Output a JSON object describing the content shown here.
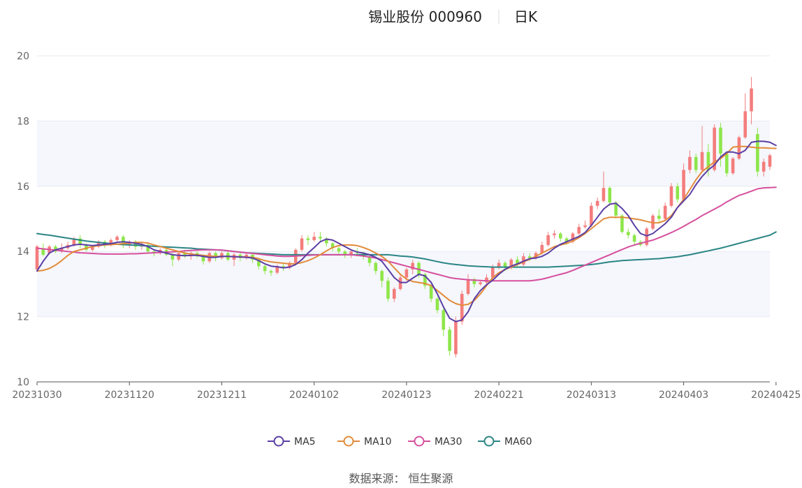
{
  "header": {
    "title": "锡业股份 000960",
    "period": "日K"
  },
  "source": "数据来源： 恒生聚源",
  "colors": {
    "up": "#f47d7d",
    "down": "#8ee64a",
    "grid": "#e6eaf2",
    "band": "#f5f7fc",
    "axis": "#555555"
  },
  "chart_data": {
    "type": "candlestick",
    "y_ticks": [
      "10",
      "12",
      "14",
      "16",
      "18",
      "20"
    ],
    "ylim": [
      10,
      20
    ],
    "x_ticks": [
      "20231030",
      "20231120",
      "20231211",
      "20240102",
      "20240123",
      "20240221",
      "20240313",
      "20240403",
      "20240425"
    ],
    "x_tick_index": [
      0,
      15,
      30,
      45,
      60,
      75,
      90,
      105,
      120
    ],
    "legend": [
      {
        "name": "MA5",
        "color": "#5b3ea4"
      },
      {
        "name": "MA10",
        "color": "#e28b3a"
      },
      {
        "name": "MA30",
        "color": "#d64f9e"
      },
      {
        "name": "MA60",
        "color": "#2a8585"
      }
    ],
    "candles": [
      [
        13.45,
        14.15,
        14.2,
        13.4
      ],
      [
        14.1,
        13.9,
        14.25,
        13.85
      ],
      [
        13.95,
        14.15,
        14.2,
        13.9
      ],
      [
        14.15,
        14.0,
        14.2,
        13.95
      ],
      [
        14.0,
        14.1,
        14.25,
        13.95
      ],
      [
        14.1,
        14.2,
        14.3,
        14.05
      ],
      [
        14.2,
        14.4,
        14.45,
        14.15
      ],
      [
        14.4,
        14.2,
        14.5,
        14.1
      ],
      [
        14.2,
        14.05,
        14.25,
        14.0
      ],
      [
        14.05,
        14.15,
        14.2,
        14.0
      ],
      [
        14.15,
        14.3,
        14.35,
        14.1
      ],
      [
        14.3,
        14.2,
        14.35,
        14.1
      ],
      [
        14.2,
        14.35,
        14.4,
        14.15
      ],
      [
        14.35,
        14.45,
        14.5,
        14.3
      ],
      [
        14.45,
        14.2,
        14.5,
        14.1
      ],
      [
        14.2,
        14.3,
        14.35,
        14.1
      ],
      [
        14.3,
        14.15,
        14.35,
        14.05
      ],
      [
        14.15,
        14.2,
        14.25,
        14.05
      ],
      [
        14.2,
        14.0,
        14.25,
        13.95
      ],
      [
        14.0,
        13.95,
        14.05,
        13.85
      ],
      [
        13.95,
        14.05,
        14.1,
        13.9
      ],
      [
        14.05,
        13.9,
        14.1,
        13.85
      ],
      [
        13.9,
        13.75,
        13.95,
        13.55
      ],
      [
        13.75,
        13.95,
        14.0,
        13.7
      ],
      [
        13.95,
        13.85,
        14.05,
        13.8
      ],
      [
        13.85,
        13.95,
        14.0,
        13.75
      ],
      [
        13.95,
        13.85,
        14.0,
        13.8
      ],
      [
        13.85,
        13.7,
        13.9,
        13.6
      ],
      [
        13.7,
        13.95,
        14.0,
        13.65
      ],
      [
        13.95,
        13.8,
        14.0,
        13.7
      ],
      [
        13.8,
        13.95,
        14.0,
        13.75
      ],
      [
        13.95,
        13.75,
        14.0,
        13.7
      ],
      [
        13.75,
        13.9,
        13.95,
        13.55
      ],
      [
        13.9,
        13.8,
        13.95,
        13.7
      ],
      [
        13.8,
        13.9,
        13.95,
        13.75
      ],
      [
        13.9,
        13.75,
        13.95,
        13.65
      ],
      [
        13.75,
        13.55,
        13.8,
        13.45
      ],
      [
        13.55,
        13.4,
        13.6,
        13.3
      ],
      [
        13.4,
        13.35,
        13.45,
        13.25
      ],
      [
        13.35,
        13.55,
        13.6,
        13.3
      ],
      [
        13.55,
        13.5,
        13.65,
        13.4
      ],
      [
        13.5,
        13.65,
        13.7,
        13.45
      ],
      [
        13.65,
        14.05,
        14.1,
        13.6
      ],
      [
        14.05,
        14.4,
        14.5,
        14.0
      ],
      [
        14.4,
        14.35,
        14.5,
        14.2
      ],
      [
        14.35,
        14.45,
        14.6,
        14.3
      ],
      [
        14.45,
        14.4,
        14.6,
        14.3
      ],
      [
        14.4,
        14.25,
        14.45,
        14.15
      ],
      [
        14.25,
        14.1,
        14.3,
        14.0
      ],
      [
        14.1,
        14.0,
        14.15,
        13.9
      ],
      [
        14.0,
        13.9,
        14.05,
        13.8
      ],
      [
        13.9,
        14.0,
        14.05,
        13.8
      ],
      [
        14.0,
        13.95,
        14.1,
        13.85
      ],
      [
        13.95,
        13.85,
        14.0,
        13.75
      ],
      [
        13.85,
        13.65,
        13.9,
        13.55
      ],
      [
        13.65,
        13.4,
        13.7,
        13.3
      ],
      [
        13.4,
        13.1,
        13.45,
        12.9
      ],
      [
        13.1,
        12.55,
        13.2,
        12.45
      ],
      [
        12.55,
        12.85,
        12.9,
        12.45
      ],
      [
        12.85,
        13.2,
        13.3,
        12.8
      ],
      [
        13.2,
        13.45,
        13.5,
        13.1
      ],
      [
        13.45,
        13.65,
        13.75,
        13.3
      ],
      [
        13.65,
        13.3,
        13.7,
        13.2
      ],
      [
        13.3,
        12.95,
        13.35,
        12.85
      ],
      [
        12.95,
        12.55,
        13.0,
        12.45
      ],
      [
        12.55,
        12.2,
        12.6,
        12.1
      ],
      [
        12.2,
        11.6,
        12.25,
        11.4
      ],
      [
        11.6,
        10.95,
        11.7,
        10.8
      ],
      [
        10.85,
        11.85,
        12.0,
        10.75
      ],
      [
        11.85,
        12.7,
        12.8,
        11.75
      ],
      [
        12.7,
        13.15,
        13.3,
        12.65
      ],
      [
        13.15,
        13.0,
        13.2,
        12.9
      ],
      [
        13.0,
        13.05,
        13.1,
        12.95
      ],
      [
        13.05,
        13.2,
        13.3,
        13.0
      ],
      [
        13.2,
        13.5,
        13.6,
        13.15
      ],
      [
        13.5,
        13.65,
        13.75,
        13.45
      ],
      [
        13.65,
        13.5,
        13.7,
        13.4
      ],
      [
        13.5,
        13.75,
        13.8,
        13.45
      ],
      [
        13.75,
        13.6,
        13.85,
        13.5
      ],
      [
        13.6,
        13.85,
        13.95,
        13.55
      ],
      [
        13.85,
        13.8,
        13.95,
        13.7
      ],
      [
        13.8,
        13.95,
        14.0,
        13.75
      ],
      [
        13.95,
        14.2,
        14.3,
        13.9
      ],
      [
        14.2,
        14.5,
        14.6,
        14.15
      ],
      [
        14.5,
        14.55,
        14.65,
        14.4
      ],
      [
        14.55,
        14.4,
        14.6,
        14.3
      ],
      [
        14.4,
        14.3,
        14.45,
        14.2
      ],
      [
        14.3,
        14.55,
        14.6,
        14.25
      ],
      [
        14.55,
        14.75,
        14.85,
        14.5
      ],
      [
        14.75,
        14.8,
        14.95,
        14.7
      ],
      [
        14.8,
        15.4,
        15.5,
        14.75
      ],
      [
        15.4,
        15.55,
        15.65,
        15.3
      ],
      [
        15.55,
        15.95,
        16.45,
        15.5
      ],
      [
        15.95,
        15.5,
        16.0,
        15.4
      ],
      [
        15.5,
        15.1,
        15.55,
        15.0
      ],
      [
        15.1,
        14.6,
        15.15,
        14.55
      ],
      [
        14.6,
        14.5,
        14.7,
        14.4
      ],
      [
        14.5,
        14.3,
        14.55,
        14.2
      ],
      [
        14.3,
        14.2,
        14.35,
        14.15
      ],
      [
        14.2,
        14.7,
        14.75,
        14.15
      ],
      [
        14.7,
        15.1,
        15.15,
        14.65
      ],
      [
        15.1,
        15.0,
        15.3,
        14.9
      ],
      [
        15.0,
        15.4,
        15.5,
        14.95
      ],
      [
        15.4,
        16.0,
        16.1,
        15.35
      ],
      [
        16.0,
        15.6,
        16.1,
        15.5
      ],
      [
        15.6,
        16.5,
        16.7,
        15.55
      ],
      [
        16.5,
        16.9,
        17.1,
        16.4
      ],
      [
        16.9,
        16.5,
        17.0,
        16.4
      ],
      [
        16.5,
        17.05,
        17.85,
        16.45
      ],
      [
        17.05,
        16.5,
        17.3,
        16.3
      ],
      [
        16.5,
        17.8,
        17.9,
        16.45
      ],
      [
        17.8,
        17.0,
        17.95,
        16.6
      ],
      [
        17.0,
        16.4,
        17.05,
        16.3
      ],
      [
        16.4,
        16.85,
        16.9,
        16.35
      ],
      [
        16.85,
        17.5,
        17.55,
        16.8
      ],
      [
        17.5,
        18.3,
        18.85,
        17.45
      ],
      [
        18.3,
        19.0,
        19.35,
        17.9
      ],
      [
        17.6,
        16.45,
        17.8,
        16.3
      ],
      [
        16.45,
        16.75,
        16.85,
        16.3
      ],
      [
        16.6,
        16.95,
        17.0,
        16.5
      ]
    ],
    "ma5": [
      13.4,
      13.7,
      13.95,
      14.05,
      14.1,
      14.15,
      14.2,
      14.22,
      14.2,
      14.18,
      14.2,
      14.22,
      14.24,
      14.28,
      14.3,
      14.28,
      14.25,
      14.22,
      14.15,
      14.05,
      14.0,
      13.95,
      13.9,
      13.88,
      13.87,
      13.88,
      13.88,
      13.85,
      13.82,
      13.82,
      13.85,
      13.85,
      13.84,
      13.83,
      13.82,
      13.8,
      13.72,
      13.62,
      13.55,
      13.53,
      13.5,
      13.52,
      13.6,
      13.75,
      13.95,
      14.12,
      14.3,
      14.38,
      14.35,
      14.25,
      14.15,
      14.05,
      13.98,
      13.95,
      13.9,
      13.82,
      13.7,
      13.45,
      13.2,
      13.05,
      13.05,
      13.18,
      13.3,
      13.25,
      13.05,
      12.7,
      12.3,
      11.95,
      11.85,
      11.9,
      12.15,
      12.55,
      12.8,
      12.98,
      13.12,
      13.3,
      13.45,
      13.55,
      13.62,
      13.7,
      13.78,
      13.8,
      13.85,
      13.95,
      14.1,
      14.22,
      14.3,
      14.38,
      14.46,
      14.58,
      14.8,
      15.05,
      15.3,
      15.45,
      15.48,
      15.32,
      15.1,
      14.8,
      14.55,
      14.48,
      14.55,
      14.7,
      14.85,
      15.05,
      15.35,
      15.55,
      15.75,
      16.05,
      16.3,
      16.5,
      16.65,
      16.9,
      17.05,
      17.05,
      17.0,
      17.1,
      17.35,
      17.38,
      17.38,
      17.35,
      17.25
    ],
    "ma10": [
      13.4,
      13.42,
      13.48,
      13.58,
      13.72,
      13.88,
      14.0,
      14.05,
      14.1,
      14.15,
      14.18,
      14.2,
      14.21,
      14.22,
      14.24,
      14.26,
      14.28,
      14.28,
      14.26,
      14.2,
      14.15,
      14.1,
      14.05,
      14.0,
      13.95,
      13.92,
      13.9,
      13.88,
      13.86,
      13.85,
      13.85,
      13.85,
      13.84,
      13.84,
      13.83,
      13.82,
      13.78,
      13.72,
      13.68,
      13.66,
      13.64,
      13.62,
      13.62,
      13.66,
      13.72,
      13.8,
      13.9,
      14.02,
      14.12,
      14.18,
      14.2,
      14.2,
      14.18,
      14.12,
      14.05,
      13.95,
      13.85,
      13.7,
      13.5,
      13.3,
      13.15,
      13.08,
      13.05,
      13.02,
      12.95,
      12.8,
      12.65,
      12.5,
      12.4,
      12.35,
      12.38,
      12.5,
      12.7,
      12.95,
      13.2,
      13.35,
      13.45,
      13.52,
      13.6,
      13.68,
      13.76,
      13.85,
      13.95,
      14.05,
      14.15,
      14.2,
      14.25,
      14.32,
      14.42,
      14.55,
      14.7,
      14.85,
      15.0,
      15.05,
      15.05,
      15.05,
      15.03,
      15.0,
      14.97,
      14.92,
      14.88,
      14.88,
      14.95,
      15.1,
      15.35,
      15.6,
      15.9,
      16.2,
      16.45,
      16.6,
      16.75,
      16.85,
      17.0,
      17.2,
      17.22,
      17.22,
      17.2,
      17.18,
      17.18,
      17.17,
      17.16
    ],
    "ma30": [
      14.1,
      14.08,
      14.06,
      14.04,
      14.02,
      14.0,
      13.98,
      13.96,
      13.95,
      13.94,
      13.93,
      13.92,
      13.92,
      13.92,
      13.92,
      13.93,
      13.93,
      13.94,
      13.95,
      13.96,
      13.97,
      13.98,
      13.99,
      14.0,
      14.02,
      14.03,
      14.04,
      14.05,
      14.05,
      14.05,
      14.04,
      14.02,
      14.0,
      13.98,
      13.96,
      13.94,
      13.92,
      13.9,
      13.88,
      13.86,
      13.85,
      13.85,
      13.86,
      13.87,
      13.88,
      13.89,
      13.9,
      13.9,
      13.9,
      13.9,
      13.9,
      13.9,
      13.88,
      13.86,
      13.83,
      13.8,
      13.75,
      13.7,
      13.65,
      13.6,
      13.55,
      13.5,
      13.45,
      13.4,
      13.35,
      13.3,
      13.25,
      13.2,
      13.17,
      13.15,
      13.13,
      13.12,
      13.11,
      13.1,
      13.1,
      13.1,
      13.1,
      13.1,
      13.1,
      13.1,
      13.1,
      13.12,
      13.15,
      13.2,
      13.25,
      13.3,
      13.35,
      13.42,
      13.5,
      13.58,
      13.66,
      13.74,
      13.82,
      13.9,
      13.98,
      14.06,
      14.14,
      14.2,
      14.25,
      14.3,
      14.35,
      14.42,
      14.5,
      14.58,
      14.67,
      14.77,
      14.88,
      14.98,
      15.1,
      15.2,
      15.3,
      15.4,
      15.52,
      15.62,
      15.72,
      15.78,
      15.85,
      15.92,
      15.95,
      15.96,
      15.97
    ],
    "ma60": [
      14.55,
      14.52,
      14.5,
      14.47,
      14.44,
      14.41,
      14.38,
      14.35,
      14.32,
      14.3,
      14.28,
      14.26,
      14.24,
      14.22,
      14.21,
      14.2,
      14.19,
      14.18,
      14.17,
      14.16,
      14.15,
      14.14,
      14.13,
      14.12,
      14.11,
      14.1,
      14.08,
      14.07,
      14.06,
      14.05,
      14.04,
      14.02,
      14.0,
      13.98,
      13.96,
      13.95,
      13.94,
      13.93,
      13.92,
      13.91,
      13.9,
      13.9,
      13.9,
      13.9,
      13.9,
      13.9,
      13.9,
      13.9,
      13.9,
      13.9,
      13.9,
      13.9,
      13.9,
      13.9,
      13.9,
      13.9,
      13.9,
      13.9,
      13.88,
      13.86,
      13.85,
      13.83,
      13.8,
      13.77,
      13.73,
      13.69,
      13.65,
      13.62,
      13.6,
      13.58,
      13.56,
      13.55,
      13.54,
      13.53,
      13.52,
      13.52,
      13.52,
      13.52,
      13.52,
      13.52,
      13.52,
      13.52,
      13.52,
      13.52,
      13.53,
      13.54,
      13.55,
      13.56,
      13.57,
      13.58,
      13.6,
      13.62,
      13.65,
      13.68,
      13.7,
      13.72,
      13.73,
      13.74,
      13.75,
      13.76,
      13.77,
      13.78,
      13.8,
      13.82,
      13.84,
      13.87,
      13.9,
      13.94,
      13.98,
      14.02,
      14.06,
      14.1,
      14.15,
      14.2,
      14.25,
      14.3,
      14.35,
      14.4,
      14.45,
      14.5,
      14.6
    ]
  }
}
